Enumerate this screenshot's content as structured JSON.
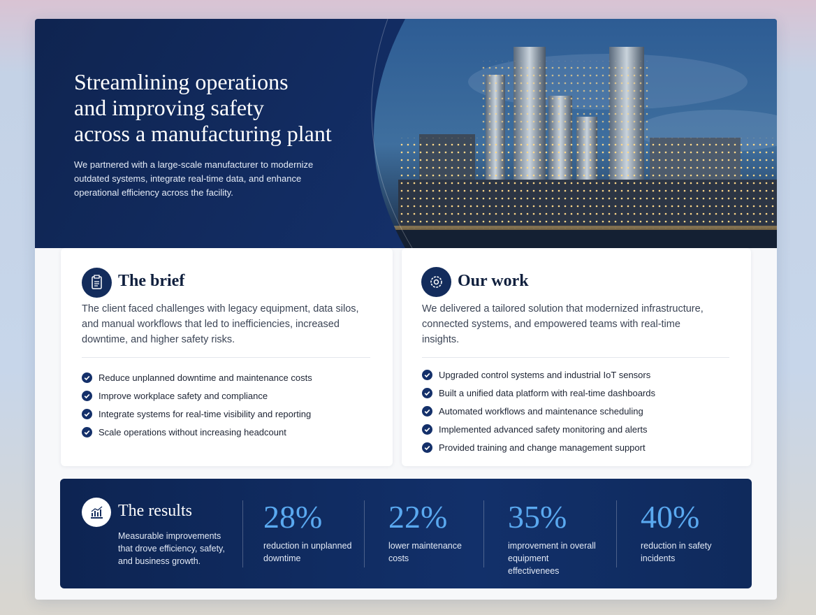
{
  "hero": {
    "title_lines": [
      "Streamlining operations",
      "and improving safety",
      "across a manufacturing plant"
    ],
    "text": "We partnered with a large-scale manufacturer to modernize outdated systems, integrate real-time data, and enhance operational efficiency across the facility."
  },
  "brief": {
    "title": "The brief",
    "text": "The client faced challenges with legacy equipment, data silos, and manual workflows that led to inefficiencies, increased downtime, and higher safety risks.",
    "items": [
      "Reduce unplanned downtime and maintenance costs",
      "Improve workplace safety and compliance",
      "Integrate systems for real-time visibility and reporting",
      "Scale operations without increasing headcount"
    ]
  },
  "work": {
    "title": "Our work",
    "text": "We delivered a tailored solution that modernized infrastructure, connected systems, and empowered teams with real-time insights.",
    "items": [
      "Upgraded control systems and industrial IoT sensors",
      "Built a unified data platform with real-time dashboards",
      "Automated workflows and maintenance scheduling",
      "Implemented advanced safety monitoring and alerts",
      "Provided training and change management support"
    ]
  },
  "results": {
    "title": "The results",
    "text": "Measurable improvements that drove efficiency, safety, and business growth.",
    "stats": [
      {
        "value": "28%",
        "label": "reduction in unplanned downtime"
      },
      {
        "value": "22%",
        "label": "lower maintenance costs"
      },
      {
        "value": "35%",
        "label": "improvement in overall equipment effectivenees"
      },
      {
        "value": "40%",
        "label": "reduction in safety incidents"
      }
    ]
  }
}
